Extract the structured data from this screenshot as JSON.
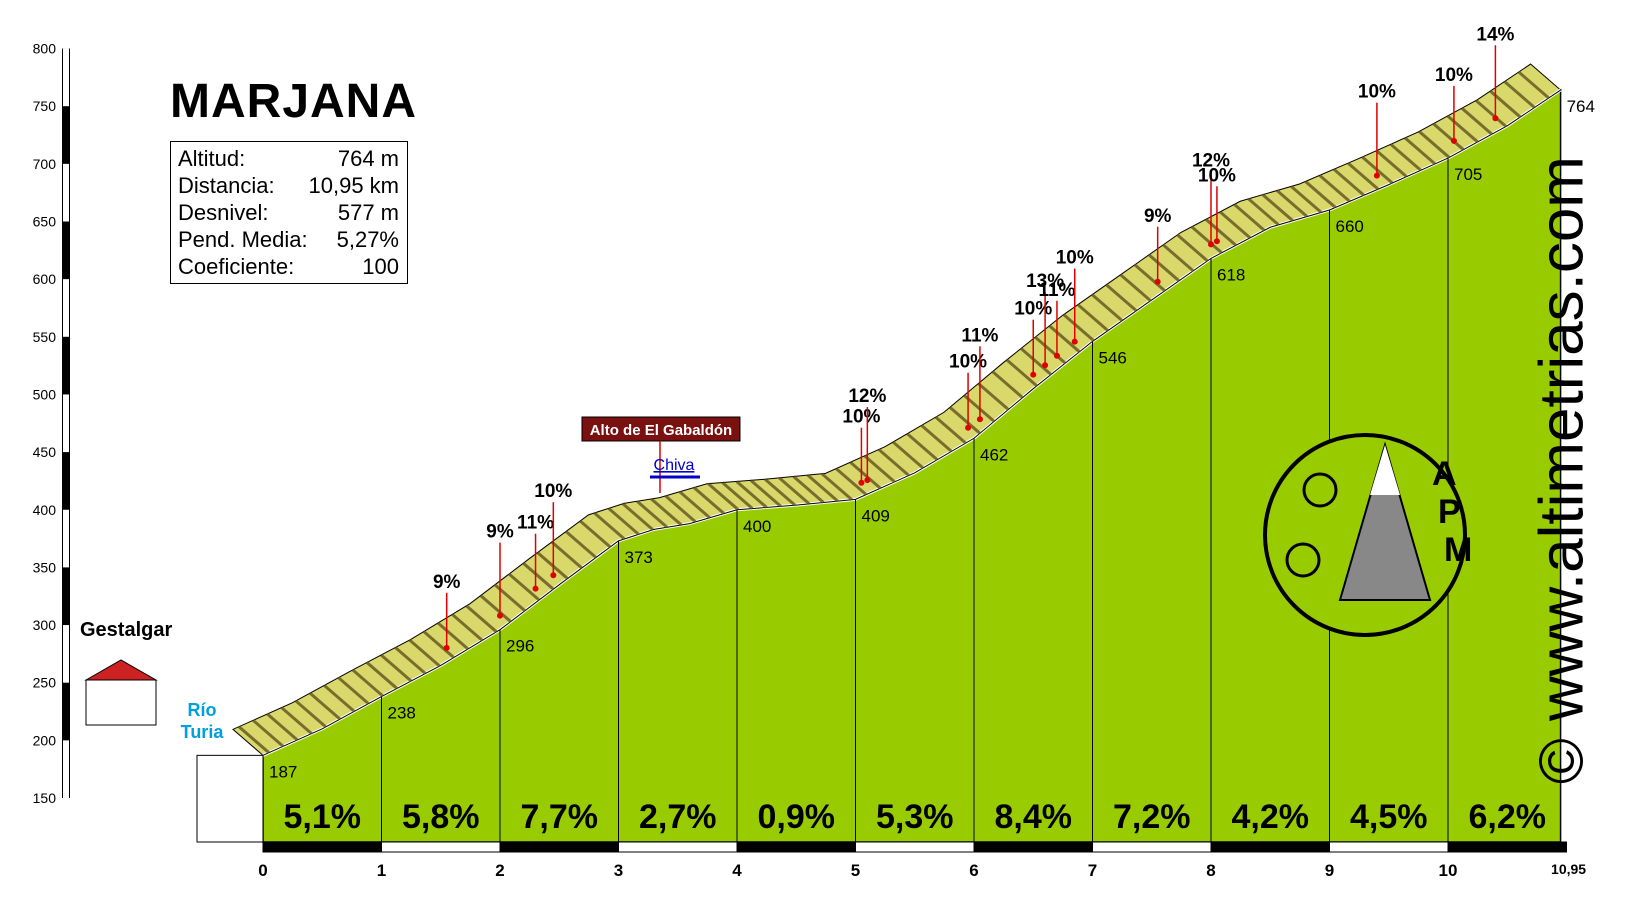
{
  "title": "MARJANA",
  "info": {
    "rows": [
      {
        "label": "Altitud:",
        "value": "764 m"
      },
      {
        "label": "Distancia:",
        "value": "10,95 km"
      },
      {
        "label": "Desnivel:",
        "value": "577 m"
      },
      {
        "label": "Pend. Media:",
        "value": "5,27%"
      },
      {
        "label": "Coeficiente:",
        "value": "100"
      }
    ]
  },
  "watermark": "© www.altimetrias.com",
  "logo_text": [
    "A",
    "P",
    "M"
  ],
  "colors": {
    "fill": "#99cc00",
    "road_light": "#d9d96b",
    "road_dark": "#5a4a1a",
    "steep": "#8b4513",
    "callout": "#e00000",
    "arrow_blue": "#0000cc",
    "arrow_brown": "#b07040",
    "river": "#00a0e0",
    "pass_label_bg": "#7a1010"
  },
  "chart_data": {
    "type": "area",
    "xlim": [
      0,
      10.95
    ],
    "ylim": [
      150,
      800
    ],
    "y_ticks": [
      150,
      200,
      250,
      300,
      350,
      400,
      450,
      500,
      550,
      600,
      650,
      700,
      750,
      800
    ],
    "x_ticks": [
      0,
      1,
      2,
      3,
      4,
      5,
      6,
      7,
      8,
      9,
      10
    ],
    "x_end_label": "10,95",
    "profile": [
      {
        "x": 0,
        "y": 187
      },
      {
        "x": 0.5,
        "y": 210
      },
      {
        "x": 1,
        "y": 238
      },
      {
        "x": 1.5,
        "y": 265
      },
      {
        "x": 2,
        "y": 296
      },
      {
        "x": 2.5,
        "y": 335
      },
      {
        "x": 3,
        "y": 373
      },
      {
        "x": 3.3,
        "y": 383
      },
      {
        "x": 3.6,
        "y": 388
      },
      {
        "x": 4,
        "y": 400
      },
      {
        "x": 4.5,
        "y": 404
      },
      {
        "x": 5,
        "y": 409
      },
      {
        "x": 5.5,
        "y": 432
      },
      {
        "x": 6,
        "y": 462
      },
      {
        "x": 6.5,
        "y": 505
      },
      {
        "x": 7,
        "y": 546
      },
      {
        "x": 7.5,
        "y": 582
      },
      {
        "x": 8,
        "y": 618
      },
      {
        "x": 8.5,
        "y": 645
      },
      {
        "x": 9,
        "y": 660
      },
      {
        "x": 9.5,
        "y": 682
      },
      {
        "x": 10,
        "y": 705
      },
      {
        "x": 10.5,
        "y": 733
      },
      {
        "x": 10.95,
        "y": 764
      }
    ],
    "km_elevations": [
      {
        "x": 0,
        "label": "187"
      },
      {
        "x": 1,
        "label": "238"
      },
      {
        "x": 2,
        "label": "296"
      },
      {
        "x": 3,
        "label": "373"
      },
      {
        "x": 4,
        "label": "400"
      },
      {
        "x": 5,
        "label": "409"
      },
      {
        "x": 6,
        "label": "462"
      },
      {
        "x": 7,
        "label": "546"
      },
      {
        "x": 8,
        "label": "618"
      },
      {
        "x": 9,
        "label": "660"
      },
      {
        "x": 10,
        "label": "705"
      },
      {
        "x": 10.95,
        "label": "764"
      }
    ],
    "segment_gradients": [
      "5,1%",
      "5,8%",
      "7,7%",
      "2,7%",
      "0,9%",
      "5,3%",
      "8,4%",
      "7,2%",
      "4,2%",
      "4,5%",
      "6,2%"
    ],
    "steep_callouts": [
      {
        "x": 1.55,
        "label": "9%"
      },
      {
        "x": 2.0,
        "label": "9%"
      },
      {
        "x": 2.3,
        "label": "11%"
      },
      {
        "x": 2.45,
        "label": "10%"
      },
      {
        "x": 5.05,
        "label": "10%"
      },
      {
        "x": 5.1,
        "label": "12%"
      },
      {
        "x": 5.95,
        "label": "10%"
      },
      {
        "x": 6.05,
        "label": "11%"
      },
      {
        "x": 6.5,
        "label": "10%"
      },
      {
        "x": 6.6,
        "label": "13%"
      },
      {
        "x": 6.7,
        "label": "11%"
      },
      {
        "x": 6.85,
        "label": "10%"
      },
      {
        "x": 7.55,
        "label": "9%"
      },
      {
        "x": 8.0,
        "label": "12%"
      },
      {
        "x": 8.05,
        "label": "10%"
      },
      {
        "x": 9.4,
        "label": "10%"
      },
      {
        "x": 10.05,
        "label": "10%"
      },
      {
        "x": 10.4,
        "label": "14%"
      }
    ],
    "places": {
      "start": "Gestalgar",
      "river": "Río Turia",
      "pass": "Alto de El Gabaldón",
      "junction": "Chiva"
    }
  }
}
